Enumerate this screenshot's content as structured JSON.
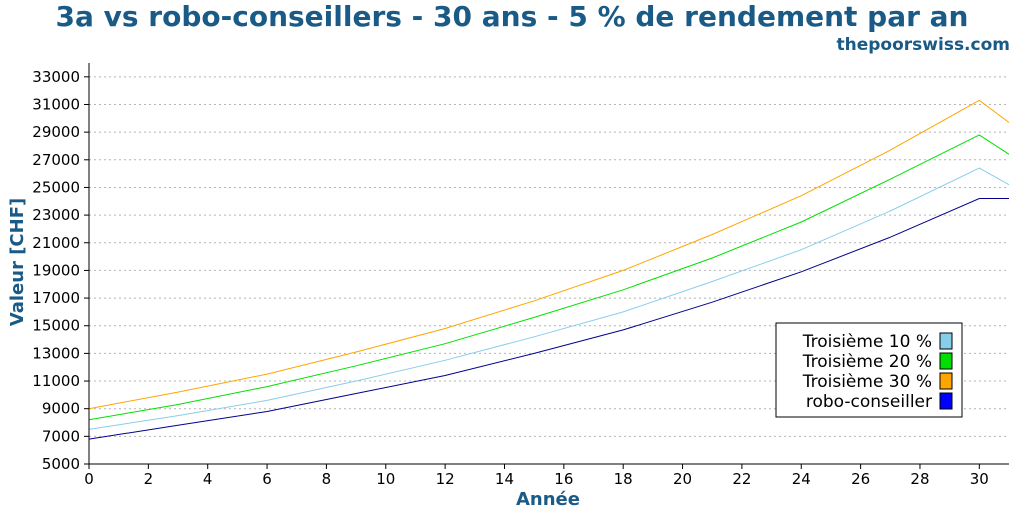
{
  "chart_data": {
    "type": "line",
    "title": "3a vs robo-conseillers - 30 ans - 5 % de rendement par an",
    "subtitle": "thepoorswiss.com",
    "xlabel": "Année",
    "ylabel": "Valeur [CHF]",
    "xlim": [
      0,
      31
    ],
    "ylim": [
      5000,
      34000
    ],
    "xticks": [
      0,
      2,
      4,
      6,
      8,
      10,
      12,
      14,
      16,
      18,
      20,
      22,
      24,
      26,
      28,
      30
    ],
    "yticks": [
      5000,
      7000,
      9000,
      11000,
      13000,
      15000,
      17000,
      19000,
      21000,
      23000,
      25000,
      27000,
      29000,
      31000,
      33000
    ],
    "grid": "horizontal dotted",
    "legend_position": "bottom-right",
    "x": [
      0,
      3,
      6,
      9,
      12,
      15,
      18,
      21,
      24,
      27,
      30,
      31
    ],
    "series": [
      {
        "name": "Troisième 10 %",
        "color": "#87ceeb",
        "values": [
          7500,
          8500,
          9600,
          11000,
          12500,
          14200,
          16000,
          18200,
          20500,
          23300,
          26400,
          25200
        ]
      },
      {
        "name": "Troisième 20 %",
        "color": "#00e000",
        "values": [
          8200,
          9300,
          10600,
          12100,
          13700,
          15600,
          17600,
          19900,
          22500,
          25600,
          28800,
          27400
        ]
      },
      {
        "name": "Troisième 30 %",
        "color": "#ffa500",
        "values": [
          9000,
          10200,
          11500,
          13100,
          14800,
          16800,
          19000,
          21600,
          24400,
          27700,
          31300,
          29700
        ]
      },
      {
        "name": "robo-conseiller",
        "color": "#00008b",
        "legend_color": "#0000ff",
        "values": [
          6800,
          7800,
          8800,
          10100,
          11400,
          13000,
          14700,
          16700,
          18900,
          21400,
          24200,
          24200
        ]
      }
    ]
  }
}
